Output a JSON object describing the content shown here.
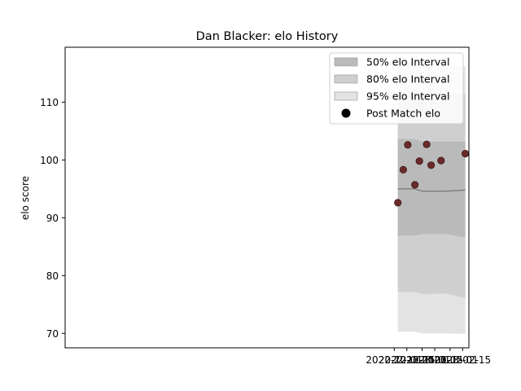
{
  "chart_data": {
    "type": "area",
    "title": "Dan Blacker: elo History",
    "xlabel": "",
    "ylabel": "elo score",
    "x_ticks": [
      "2022-12-01",
      "2022-12-15",
      "2023-01-01",
      "2023-01-15",
      "2023-02-01",
      "2023-02-15"
    ],
    "y_ticks": [
      70,
      80,
      90,
      100,
      110
    ],
    "xlim": [
      "2021-11-30",
      "2023-02-22"
    ],
    "ylim": [
      67.5,
      119.5
    ],
    "grid": false,
    "legend_position": "top-right",
    "band_x": [
      "2022-12-05",
      "2022-12-24",
      "2023-01-01",
      "2023-01-27",
      "2023-02-18"
    ],
    "median": [
      95.0,
      95.0,
      94.6,
      94.6,
      94.8
    ],
    "bands": [
      {
        "name": "95% elo Interval",
        "color": "#e3e3e3",
        "lower": [
          70.3,
          70.3,
          70.0,
          70.0,
          69.9
        ],
        "upper": [
          116.8,
          116.8,
          116.3,
          116.2,
          116.2
        ]
      },
      {
        "name": "80% elo Interval",
        "color": "#cfcfcf",
        "lower": [
          77.2,
          77.2,
          76.8,
          76.9,
          76.1
        ],
        "upper": [
          112.1,
          112.1,
          111.4,
          111.4,
          111.4
        ]
      },
      {
        "name": "50% elo Interval",
        "color": "#bababa",
        "lower": [
          86.9,
          86.9,
          87.2,
          87.2,
          86.6
        ],
        "upper": [
          103.6,
          103.6,
          103.2,
          103.2,
          103.2
        ]
      }
    ],
    "series": [
      {
        "name": "Post Match elo",
        "color": "#6b2a2a",
        "x": [
          "2022-12-05",
          "2022-12-11",
          "2022-12-16",
          "2022-12-24",
          "2022-12-29",
          "2023-01-06",
          "2023-01-11",
          "2023-01-22",
          "2023-02-18"
        ],
        "y": [
          92.6,
          98.3,
          102.6,
          95.7,
          99.8,
          102.7,
          99.1,
          99.9,
          101.1
        ]
      }
    ],
    "legend": [
      "50% elo Interval",
      "80% elo Interval",
      "95% elo Interval",
      "Post Match elo"
    ]
  }
}
